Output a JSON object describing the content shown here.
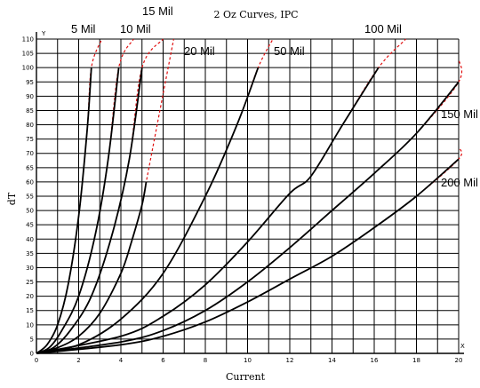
{
  "colors": {
    "ipc_fit": "#e01010",
    "measured": "#000000",
    "grid": "#000000",
    "background": "#ffffff"
  },
  "chart_data": {
    "type": "line",
    "title": "2 Oz Curves, IPC",
    "xlabel": "Current",
    "ylabel": "dT",
    "x_axis_end_label": "X",
    "y_axis_end_label": "Y",
    "xlim": [
      0,
      20
    ],
    "ylim": [
      0,
      110
    ],
    "xticks": [
      0,
      2,
      4,
      6,
      8,
      10,
      12,
      14,
      16,
      18,
      20
    ],
    "yticks": [
      0,
      5,
      10,
      15,
      20,
      25,
      30,
      35,
      40,
      45,
      50,
      55,
      60,
      65,
      70,
      75,
      80,
      85,
      90,
      95,
      100,
      105,
      110
    ],
    "x_minor_step": 1,
    "grid": true,
    "series": [
      {
        "name": "5 Mil",
        "points": [
          [
            0,
            0
          ],
          [
            0.5,
            3
          ],
          [
            1,
            10
          ],
          [
            1.5,
            24
          ],
          [
            2,
            48
          ],
          [
            2.4,
            78
          ],
          [
            2.6,
            100
          ]
        ],
        "fit_end": [
          3.1,
          110
        ]
      },
      {
        "name": "10 Mil",
        "points": [
          [
            0,
            0
          ],
          [
            0.6,
            2
          ],
          [
            1.2,
            8
          ],
          [
            2,
            20
          ],
          [
            2.8,
            42
          ],
          [
            3.4,
            68
          ],
          [
            3.9,
            100
          ]
        ],
        "fit_end": [
          4.6,
          110
        ]
      },
      {
        "name": "15 Mil",
        "points": [
          [
            0,
            0
          ],
          [
            0.8,
            2
          ],
          [
            1.6,
            8
          ],
          [
            2.6,
            20
          ],
          [
            3.6,
            42
          ],
          [
            4.4,
            68
          ],
          [
            5.0,
            100
          ]
        ],
        "fit_end": [
          6.0,
          110
        ]
      },
      {
        "name": "20 Mil",
        "points": [
          [
            0,
            0
          ],
          [
            1,
            2
          ],
          [
            2,
            6
          ],
          [
            3,
            14
          ],
          [
            4,
            28
          ],
          [
            4.5,
            39
          ],
          [
            5.0,
            52
          ],
          [
            5.2,
            60
          ]
        ],
        "fit_end": [
          6.5,
          110
        ]
      },
      {
        "name": "50 Mil",
        "points": [
          [
            0,
            0
          ],
          [
            2,
            3
          ],
          [
            4,
            12
          ],
          [
            6,
            28
          ],
          [
            8,
            55
          ],
          [
            9.5,
            80
          ],
          [
            10.5,
            100
          ]
        ],
        "fit_end": [
          11.2,
          110
        ]
      },
      {
        "name": "100 Mil",
        "points": [
          [
            0,
            0
          ],
          [
            4,
            6
          ],
          [
            6,
            13
          ],
          [
            8,
            24
          ],
          [
            10,
            39
          ],
          [
            12,
            56
          ],
          [
            13,
            62
          ],
          [
            14.5,
            80
          ],
          [
            16.2,
            100
          ]
        ],
        "fit_end": [
          17.5,
          110
        ]
      },
      {
        "name": "150 Mil",
        "points": [
          [
            0,
            0
          ],
          [
            4,
            4
          ],
          [
            6,
            8
          ],
          [
            8,
            15
          ],
          [
            10,
            25
          ],
          [
            12,
            37
          ],
          [
            14,
            50
          ],
          [
            16,
            63
          ],
          [
            18,
            77
          ],
          [
            20,
            95
          ]
        ],
        "fit_end": [
          20,
          103
        ]
      },
      {
        "name": "200 Mil",
        "points": [
          [
            0,
            0
          ],
          [
            4,
            3
          ],
          [
            6,
            6
          ],
          [
            8,
            11
          ],
          [
            10,
            18
          ],
          [
            12,
            26
          ],
          [
            14,
            34
          ],
          [
            16,
            44
          ],
          [
            18,
            55
          ],
          [
            20,
            68
          ]
        ],
        "fit_end": [
          20,
          72
        ]
      }
    ]
  }
}
